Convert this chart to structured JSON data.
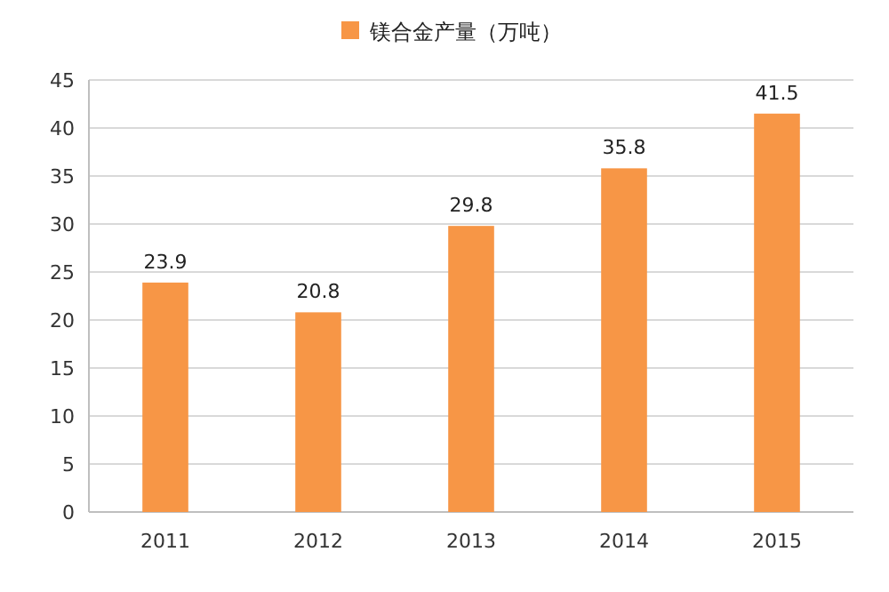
{
  "chart_data": {
    "type": "bar",
    "categories": [
      "2011",
      "2012",
      "2013",
      "2014",
      "2015"
    ],
    "series": [
      {
        "name": "镁合金产量（万吨）",
        "color": "#f79646",
        "values": [
          23.9,
          20.8,
          29.8,
          35.8,
          41.5
        ]
      }
    ],
    "ylim": [
      0,
      45
    ],
    "yticks": [
      0,
      5,
      10,
      15,
      20,
      25,
      30,
      35,
      40,
      45
    ],
    "grid": "y",
    "legend": "top",
    "data_labels": true
  }
}
